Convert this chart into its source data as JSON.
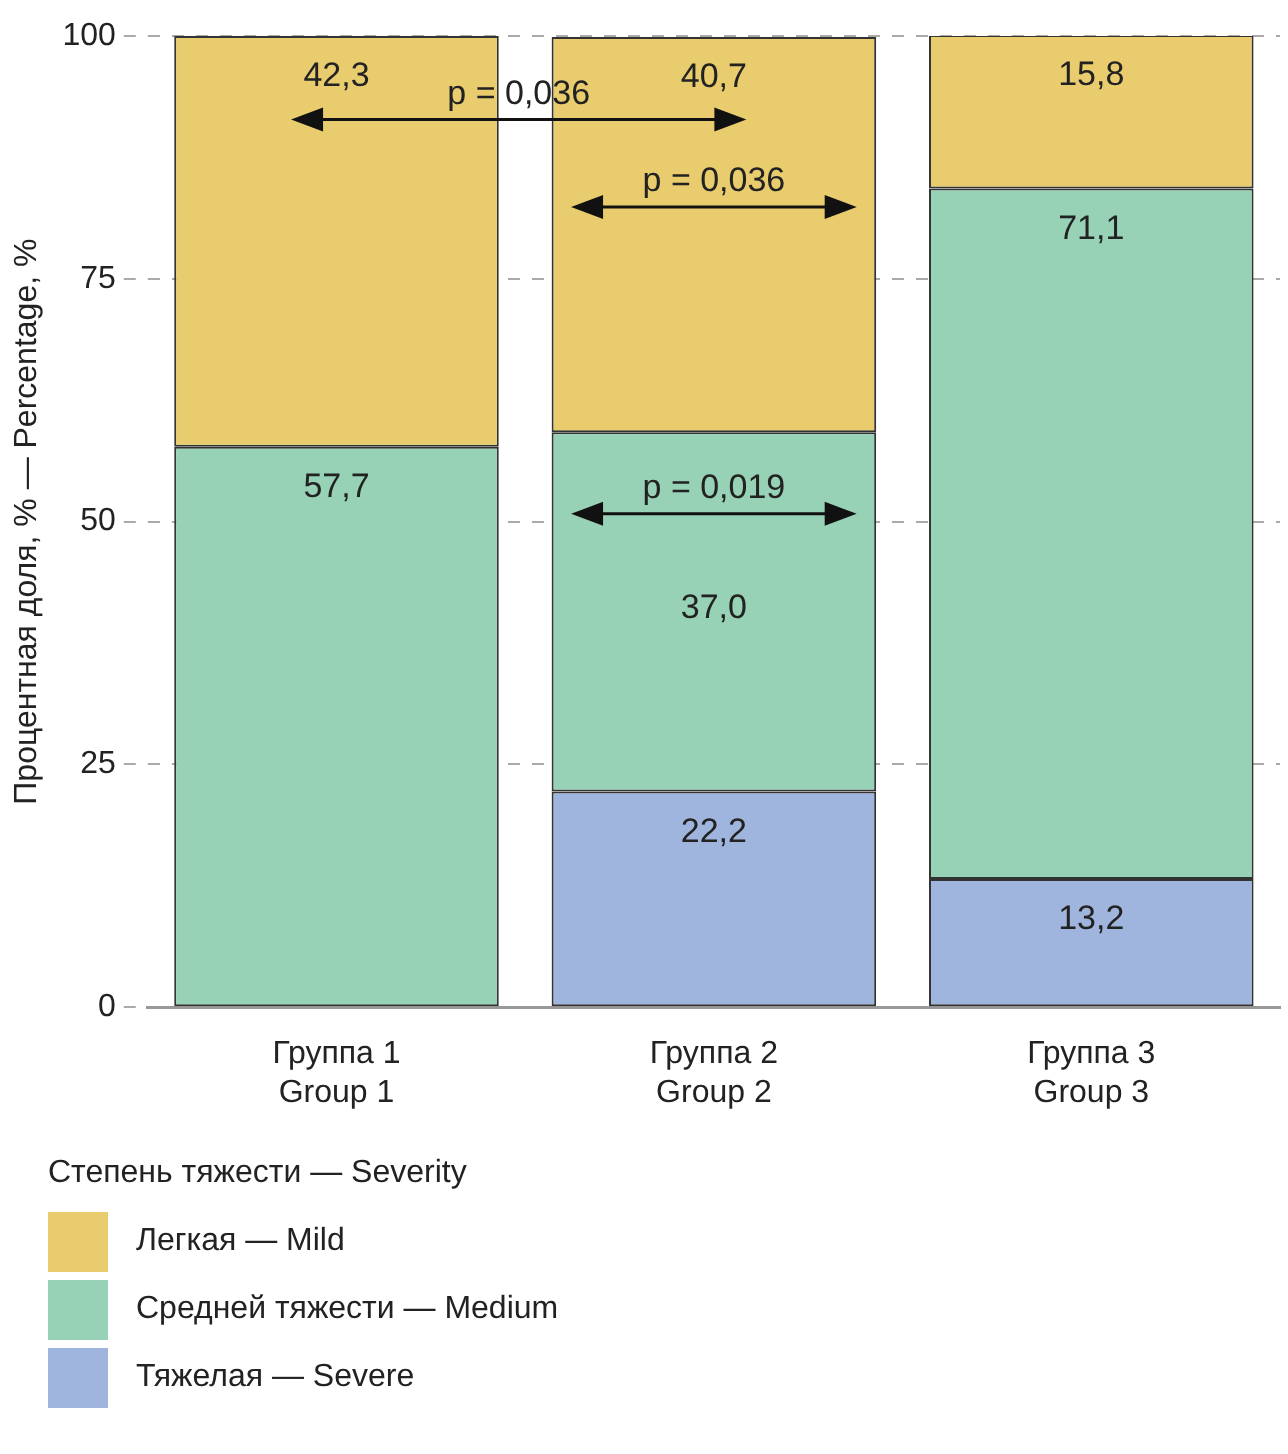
{
  "chart_data": {
    "type": "bar",
    "stacked": true,
    "ylabel": "Процентная доля, % — Percentage, %",
    "legend_title": "Степень тяжести — Severity",
    "categories": [
      "Группа 1\nGroup 1",
      "Группа 2\nGroup 2",
      "Группа 3\nGroup 3"
    ],
    "series": [
      {
        "name": "Тяжелая — Severe",
        "color": "#a0b5de",
        "values": [
          null,
          22.2,
          13.2
        ],
        "value_labels": [
          null,
          "22,2",
          "13,2"
        ]
      },
      {
        "name": "Средней тяжести — Medium",
        "color": "#98d2b6",
        "values": [
          57.7,
          37.0,
          71.1
        ],
        "value_labels": [
          "57,7",
          "37,0",
          "71,1"
        ]
      },
      {
        "name": "Легкая — Mild",
        "color": "#e8cc6e",
        "values": [
          42.3,
          40.7,
          15.8
        ],
        "value_labels": [
          "42,3",
          "40,7",
          "15,8"
        ]
      }
    ],
    "ylim": [
      0,
      100
    ],
    "yticks": [
      0,
      25,
      50,
      75,
      100
    ],
    "grid": "y",
    "legend": "bottom left",
    "annotations": [
      "p = 0,036",
      "p = 0,036",
      "p = 0,019"
    ]
  }
}
